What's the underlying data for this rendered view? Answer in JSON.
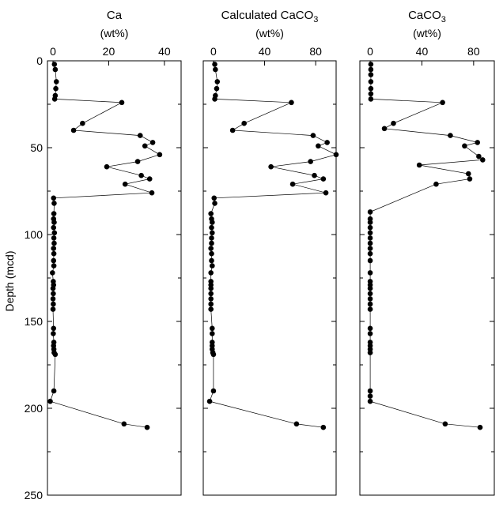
{
  "y_axis_label": "Depth (mcd)",
  "chart_data": {
    "type": "scatter",
    "shared_y": {
      "label": "Depth (mcd)",
      "ylim": [
        0,
        250
      ],
      "inverted": true,
      "ticks": [
        0,
        50,
        100,
        150,
        200,
        250
      ],
      "tick_labels": [
        "0",
        "50",
        "100",
        "150",
        "200",
        "250"
      ]
    },
    "depth": [
      1,
      3,
      5,
      7,
      10,
      12,
      14,
      16,
      19,
      24,
      36,
      40,
      43,
      47,
      50,
      53,
      56,
      58,
      61,
      64,
      66,
      68,
      71,
      73,
      75,
      80,
      83,
      88,
      91,
      93,
      96,
      99,
      102,
      105,
      108,
      111,
      115,
      118,
      122,
      127,
      129,
      131,
      134,
      137,
      140,
      143,
      154,
      157,
      160,
      163,
      166,
      168,
      172,
      175,
      178,
      182,
      185,
      187,
      190,
      196,
      208,
      211
    ],
    "panels": [
      {
        "title": "Ca",
        "unit": "(wt%)",
        "xlim": [
          -2,
          46
        ],
        "xticks": [
          0,
          20,
          40
        ],
        "xtick_labels": [
          "0",
          "20",
          "40"
        ],
        "points": [
          {
            "x": 0.5,
            "y": 2
          },
          {
            "x": 0.8,
            "y": 5
          },
          {
            "x": 1.2,
            "y": 12
          },
          {
            "x": 1,
            "y": 16
          },
          {
            "x": 0.8,
            "y": 20
          },
          {
            "x": 0.6,
            "y": 22
          },
          {
            "x": 24.7,
            "y": 24
          },
          {
            "x": 10.6,
            "y": 36
          },
          {
            "x": 7.4,
            "y": 40
          },
          {
            "x": 31.3,
            "y": 43
          },
          {
            "x": 35.8,
            "y": 47
          },
          {
            "x": 33,
            "y": 49
          },
          {
            "x": 38.3,
            "y": 54
          },
          {
            "x": 30.4,
            "y": 58
          },
          {
            "x": 19.3,
            "y": 61
          },
          {
            "x": 31.7,
            "y": 66
          },
          {
            "x": 34.7,
            "y": 68
          },
          {
            "x": 25.9,
            "y": 71
          },
          {
            "x": 35.5,
            "y": 76
          },
          {
            "x": 0.2,
            "y": 79
          },
          {
            "x": 0.4,
            "y": 82
          },
          {
            "x": 0.3,
            "y": 88
          },
          {
            "x": 0.2,
            "y": 91
          },
          {
            "x": 0.4,
            "y": 93
          },
          {
            "x": 0.2,
            "y": 96
          },
          {
            "x": 0.5,
            "y": 99
          },
          {
            "x": 0.3,
            "y": 102
          },
          {
            "x": 0.4,
            "y": 105
          },
          {
            "x": 0.2,
            "y": 108
          },
          {
            "x": 0.3,
            "y": 111
          },
          {
            "x": 0.2,
            "y": 115
          },
          {
            "x": 0.3,
            "y": 118
          },
          {
            "x": -0.2,
            "y": 122
          },
          {
            "x": 0.1,
            "y": 127
          },
          {
            "x": 0.2,
            "y": 129
          },
          {
            "x": 0,
            "y": 131
          },
          {
            "x": 0.1,
            "y": 134
          },
          {
            "x": 0,
            "y": 137
          },
          {
            "x": 0.1,
            "y": 140
          },
          {
            "x": 0,
            "y": 143
          },
          {
            "x": 0.2,
            "y": 154
          },
          {
            "x": 0.1,
            "y": 157
          },
          {
            "x": 0.3,
            "y": 162
          },
          {
            "x": 0.2,
            "y": 164
          },
          {
            "x": 0.3,
            "y": 166
          },
          {
            "x": 0.4,
            "y": 168
          },
          {
            "x": 0.8,
            "y": 169
          },
          {
            "x": 0.3,
            "y": 190
          },
          {
            "x": -1,
            "y": 196
          },
          {
            "x": 25.5,
            "y": 209
          },
          {
            "x": 33.8,
            "y": 211
          }
        ]
      },
      {
        "title": "Calculated CaCO",
        "title_sub": "3",
        "unit": "(wt%)",
        "xlim": [
          -8,
          96
        ],
        "xticks": [
          0,
          40,
          80
        ],
        "xtick_labels": [
          "0",
          "40",
          "80"
        ],
        "points": [
          {
            "x": 1,
            "y": 2
          },
          {
            "x": 1.5,
            "y": 5
          },
          {
            "x": 3,
            "y": 12
          },
          {
            "x": 2.5,
            "y": 16
          },
          {
            "x": 1.5,
            "y": 20
          },
          {
            "x": 1,
            "y": 22
          },
          {
            "x": 61,
            "y": 24
          },
          {
            "x": 24,
            "y": 36
          },
          {
            "x": 15,
            "y": 40
          },
          {
            "x": 78,
            "y": 43
          },
          {
            "x": 89,
            "y": 47
          },
          {
            "x": 82,
            "y": 49
          },
          {
            "x": 96,
            "y": 54
          },
          {
            "x": 76,
            "y": 58
          },
          {
            "x": 45,
            "y": 61
          },
          {
            "x": 79,
            "y": 66
          },
          {
            "x": 86,
            "y": 68
          },
          {
            "x": 62,
            "y": 71
          },
          {
            "x": 88,
            "y": 76
          },
          {
            "x": 0.5,
            "y": 79
          },
          {
            "x": 1,
            "y": 82
          },
          {
            "x": -2,
            "y": 88
          },
          {
            "x": -1.5,
            "y": 91
          },
          {
            "x": -1,
            "y": 93
          },
          {
            "x": -1.5,
            "y": 96
          },
          {
            "x": -1,
            "y": 99
          },
          {
            "x": -1.5,
            "y": 102
          },
          {
            "x": -1.5,
            "y": 105
          },
          {
            "x": -2,
            "y": 108
          },
          {
            "x": -1.5,
            "y": 111
          },
          {
            "x": -1.5,
            "y": 115
          },
          {
            "x": -1,
            "y": 118
          },
          {
            "x": -2,
            "y": 122
          },
          {
            "x": -2,
            "y": 127
          },
          {
            "x": -2,
            "y": 129
          },
          {
            "x": -2,
            "y": 131
          },
          {
            "x": -2,
            "y": 134
          },
          {
            "x": -2,
            "y": 137
          },
          {
            "x": -2,
            "y": 140
          },
          {
            "x": -2,
            "y": 143
          },
          {
            "x": -1,
            "y": 154
          },
          {
            "x": -1,
            "y": 157
          },
          {
            "x": -1,
            "y": 162
          },
          {
            "x": -1,
            "y": 164
          },
          {
            "x": -1,
            "y": 166
          },
          {
            "x": -0.5,
            "y": 168
          },
          {
            "x": 0,
            "y": 169
          },
          {
            "x": 0,
            "y": 190
          },
          {
            "x": -3,
            "y": 196
          },
          {
            "x": 65,
            "y": 209
          },
          {
            "x": 86,
            "y": 211
          }
        ]
      },
      {
        "title": "CaCO",
        "title_sub": "3",
        "unit": "(wt%)",
        "xlim": [
          -8,
          96
        ],
        "xticks": [
          0,
          40,
          80
        ],
        "xtick_labels": [
          "0",
          "40",
          "80"
        ],
        "points": [
          {
            "x": 0.5,
            "y": 2
          },
          {
            "x": 0.5,
            "y": 5
          },
          {
            "x": 0.5,
            "y": 8
          },
          {
            "x": 0.5,
            "y": 12
          },
          {
            "x": 0.5,
            "y": 16
          },
          {
            "x": 0.5,
            "y": 19
          },
          {
            "x": 0.5,
            "y": 22
          },
          {
            "x": 56,
            "y": 24
          },
          {
            "x": 18,
            "y": 36
          },
          {
            "x": 11,
            "y": 39
          },
          {
            "x": 62,
            "y": 43
          },
          {
            "x": 83,
            "y": 47
          },
          {
            "x": 73,
            "y": 49
          },
          {
            "x": 84,
            "y": 55
          },
          {
            "x": 87,
            "y": 57
          },
          {
            "x": 38,
            "y": 60
          },
          {
            "x": 76,
            "y": 65
          },
          {
            "x": 77,
            "y": 68
          },
          {
            "x": 51,
            "y": 71
          },
          {
            "x": 0,
            "y": 87
          },
          {
            "x": 0,
            "y": 91
          },
          {
            "x": 0,
            "y": 93
          },
          {
            "x": 0,
            "y": 96
          },
          {
            "x": 0,
            "y": 99
          },
          {
            "x": 0,
            "y": 102
          },
          {
            "x": 0,
            "y": 105
          },
          {
            "x": 0,
            "y": 108
          },
          {
            "x": 0,
            "y": 111
          },
          {
            "x": 0,
            "y": 115
          },
          {
            "x": 0,
            "y": 122
          },
          {
            "x": 0,
            "y": 127
          },
          {
            "x": 0,
            "y": 129
          },
          {
            "x": 0,
            "y": 131
          },
          {
            "x": 0,
            "y": 134
          },
          {
            "x": 0,
            "y": 137
          },
          {
            "x": 0,
            "y": 140
          },
          {
            "x": 0,
            "y": 143
          },
          {
            "x": 0,
            "y": 154
          },
          {
            "x": 0,
            "y": 157
          },
          {
            "x": 0,
            "y": 162
          },
          {
            "x": 0,
            "y": 164
          },
          {
            "x": 0,
            "y": 166
          },
          {
            "x": 0,
            "y": 168
          },
          {
            "x": 0,
            "y": 190
          },
          {
            "x": 0,
            "y": 193
          },
          {
            "x": 0,
            "y": 196
          },
          {
            "x": 58,
            "y": 209
          },
          {
            "x": 85,
            "y": 211
          }
        ]
      }
    ]
  }
}
